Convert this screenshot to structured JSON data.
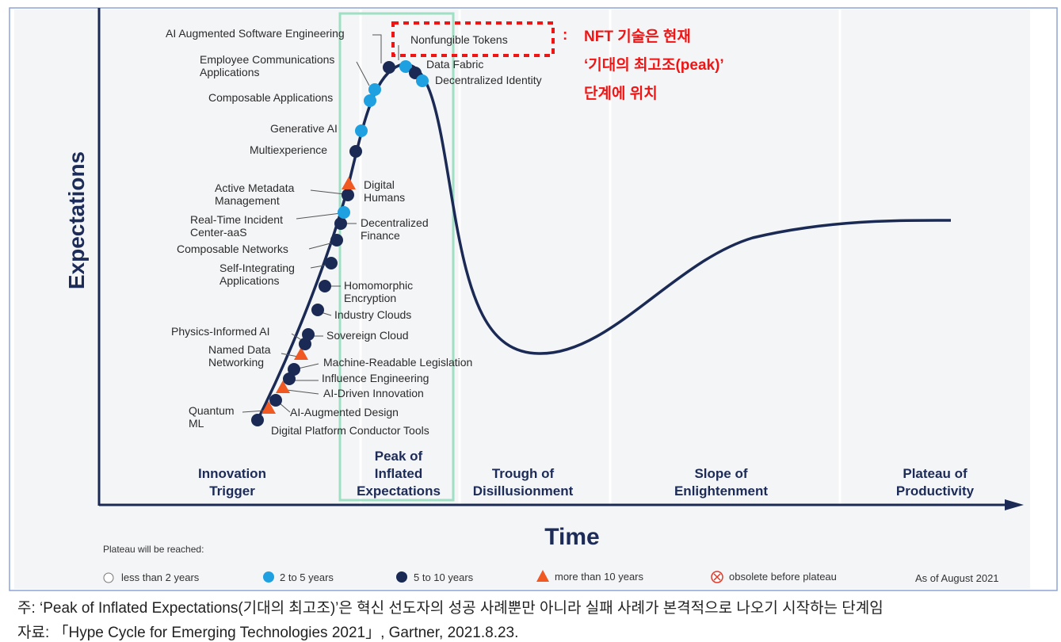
{
  "phases": [
    [
      "Innovation",
      "Trigger"
    ],
    [
      "Peak of",
      "Inflated",
      "Expectations"
    ],
    [
      "Trough of",
      "Disillusionment"
    ],
    [
      "Slope of",
      "Enlightenment"
    ],
    [
      "Plateau of",
      "Productivity"
    ]
  ],
  "axes": {
    "y": "Expectations",
    "x": "Time"
  },
  "technologies": [
    {
      "name": "Digital Platform Conductor Tools",
      "plateau": "5 to 10 years"
    },
    {
      "name": [
        "Quantum",
        "ML"
      ],
      "plateau": "more than 10 years"
    },
    {
      "name": "AI-Augmented Design",
      "plateau": "5 to 10 years"
    },
    {
      "name": "AI-Driven Innovation",
      "plateau": "more than 10 years"
    },
    {
      "name": "Influence Engineering",
      "plateau": "5 to 10 years"
    },
    {
      "name": "Machine-Readable Legislation",
      "plateau": "5 to 10 years"
    },
    {
      "name": [
        "Named Data",
        "Networking"
      ],
      "plateau": "more than 10 years"
    },
    {
      "name": "Physics-Informed AI",
      "plateau": "5 to 10 years"
    },
    {
      "name": "Sovereign Cloud",
      "plateau": "5 to 10 years"
    },
    {
      "name": "Industry Clouds",
      "plateau": "5 to 10 years"
    },
    {
      "name": [
        "Homomorphic",
        "Encryption"
      ],
      "plateau": "5 to 10 years"
    },
    {
      "name": [
        "Self-Integrating",
        "Applications"
      ],
      "plateau": "5 to 10 years"
    },
    {
      "name": "Composable Networks",
      "plateau": "5 to 10 years"
    },
    {
      "name": [
        "Decentralized",
        "Finance"
      ],
      "plateau": "5 to 10 years"
    },
    {
      "name": [
        "Real-Time Incident",
        "Center-aaS"
      ],
      "plateau": "2 to 5 years"
    },
    {
      "name": [
        "Active Metadata",
        "Management"
      ],
      "plateau": "5 to 10 years"
    },
    {
      "name": [
        "Digital",
        "Humans"
      ],
      "plateau": "more than 10 years"
    },
    {
      "name": "Multiexperience",
      "plateau": "5 to 10 years"
    },
    {
      "name": "Generative AI",
      "plateau": "2 to 5 years"
    },
    {
      "name": "Composable Applications",
      "plateau": "2 to 5 years"
    },
    {
      "name": [
        "Employee Communications",
        "Applications"
      ],
      "plateau": "2 to 5 years"
    },
    {
      "name": "AI Augmented Software Engineering",
      "plateau": "5 to 10 years"
    },
    {
      "name": "Nonfungible Tokens",
      "plateau": "2 to 5 years"
    },
    {
      "name": "Data Fabric",
      "plateau": "5 to 10 years"
    },
    {
      "name": "Decentralized Identity",
      "plateau": "2 to 5 years"
    }
  ],
  "annotation": {
    "colon": ":",
    "lines": [
      "NFT 기술은 현재",
      "‘기대의 최고조(peak)’",
      "단계에 위치"
    ]
  },
  "legend": {
    "title": "Plateau will be reached:",
    "items": [
      "less than 2 years",
      "2 to 5 years",
      "5 to 10 years",
      "more than 10 years",
      "obsolete before plateau"
    ],
    "as_of": "As of August 2021"
  },
  "colors": {
    "2 to 5 years": "#1fa0e0",
    "5 to 10 years": "#1a2a55",
    "more than 10 years": "#f05a22",
    "curve": "#1a2a55",
    "highlight": "#9fe0c5",
    "annotation": "#f01515"
  },
  "footnotes": [
    "주: ‘Peak of Inflated Expectations(기대의 최고조)’은 혁신 선도자의 성공 사례뿐만 아니라 실패 사례가 본격적으로 나오기 시작하는 단계임",
    "자료: 「Hype Cycle for Emerging Technologies 2021」, Gartner, 2021.8.23."
  ]
}
